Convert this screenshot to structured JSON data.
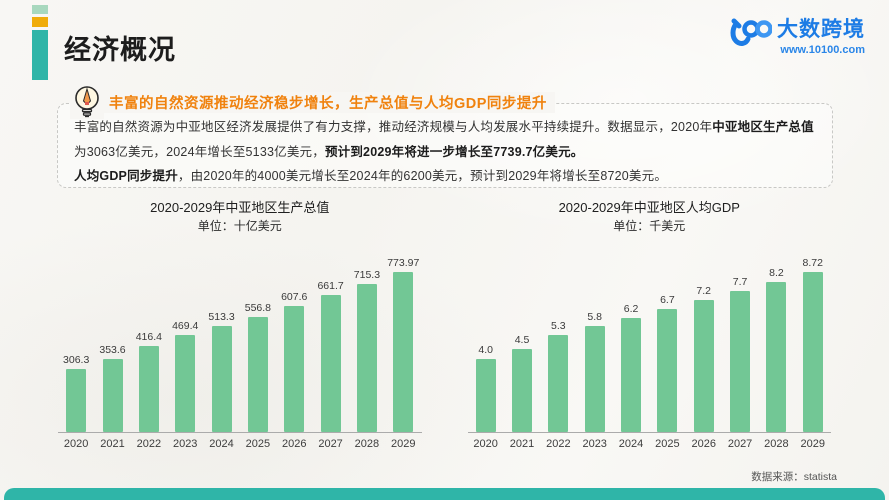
{
  "header": {
    "title": "经济概况",
    "logo": {
      "brand": "大数跨境",
      "url": "www.10100.com",
      "mark": "100-logo"
    }
  },
  "callout": {
    "heading": "丰富的自然资源推动经济稳步增长，生产总值与人均GDP同步提升",
    "icon": "lightbulb-pencil-icon"
  },
  "paragraph": {
    "lines": [
      {
        "segments": [
          {
            "t": "丰富的自然资源为中亚地区经济发展提供了有力支撑，推动经济规模与人均发展水平持续提升。数据显示，2020年",
            "b": false
          },
          {
            "t": "中亚地区生产总值",
            "b": true
          },
          {
            "t": "为3063亿美元，2024年增长至5133亿美元，",
            "b": false
          },
          {
            "t": "预计到2029年将进一步增长至7739.7亿美元。",
            "b": true
          }
        ]
      },
      {
        "segments": [
          {
            "t": "人均GDP同步提升",
            "b": true
          },
          {
            "t": "，由2020年的4000美元增长至2024年的6200美元，预计到2029年将增长至8720美元。",
            "b": false
          }
        ]
      }
    ]
  },
  "chart_data": [
    {
      "type": "bar",
      "title": "2020-2029年中亚地区生产总值",
      "subtitle": "单位：十亿美元",
      "categories": [
        "2020",
        "2021",
        "2022",
        "2023",
        "2024",
        "2025",
        "2026",
        "2027",
        "2028",
        "2029"
      ],
      "values": [
        306.3,
        353.6,
        416.4,
        469.4,
        513.3,
        556.8,
        607.6,
        661.7,
        715.3,
        773.97
      ],
      "value_labels": [
        "306.3",
        "353.6",
        "416.4",
        "469.4",
        "513.3",
        "556.8",
        "607.6",
        "661.7",
        "715.3",
        "773.97"
      ],
      "xlabel": "",
      "ylabel": "",
      "ylim": [
        0,
        800
      ],
      "grid": false,
      "legend": "none",
      "bar_color": "#72c795"
    },
    {
      "type": "bar",
      "title": "2020-2029年中亚地区人均GDP",
      "subtitle": "单位：千美元",
      "categories": [
        "2020",
        "2021",
        "2022",
        "2023",
        "2024",
        "2025",
        "2026",
        "2027",
        "2028",
        "2029"
      ],
      "values": [
        4.0,
        4.5,
        5.3,
        5.8,
        6.2,
        6.7,
        7.2,
        7.7,
        8.2,
        8.72
      ],
      "value_labels": [
        "4.0",
        "4.5",
        "5.3",
        "5.8",
        "6.2",
        "6.7",
        "7.2",
        "7.7",
        "8.2",
        "8.72"
      ],
      "xlabel": "",
      "ylabel": "",
      "ylim": [
        0,
        9
      ],
      "grid": false,
      "legend": "none",
      "bar_color": "#72c795"
    }
  ],
  "footer": {
    "source": "数据来源：statista"
  },
  "colors": {
    "teal": "#2fb5a8",
    "accent_orange": "#f0ac0a",
    "accent_light_green": "#a8d8be",
    "heading_orange": "#f0820e",
    "bar_green": "#72c795",
    "logo_blue": "#1d7ce5",
    "page_bg": "#f7f6f3"
  }
}
